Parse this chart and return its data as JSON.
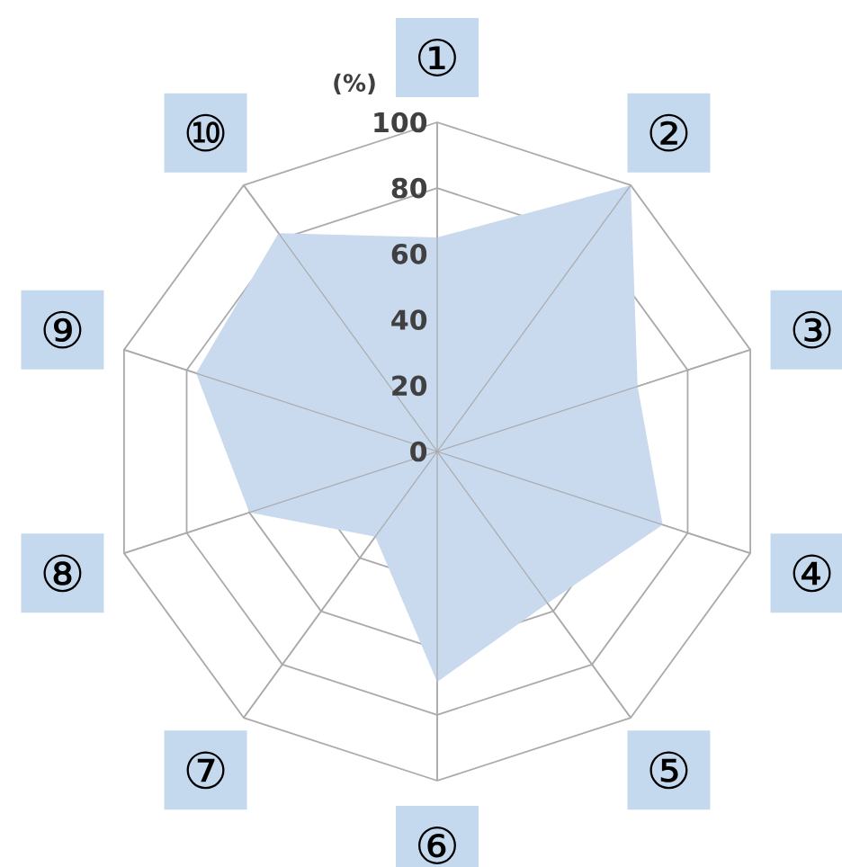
{
  "chart_data": {
    "type": "radar",
    "ylabel": "(%)",
    "categories": [
      "①",
      "②",
      "③",
      "④",
      "⑤",
      "⑥",
      "⑦",
      "⑧",
      "⑨",
      "⑩"
    ],
    "series": [
      {
        "color": "#c9d9ee",
        "values": [
          65,
          100,
          64,
          72,
          57,
          70,
          32,
          60,
          77,
          82
        ]
      }
    ],
    "ylim": [
      0,
      100
    ],
    "yticks": [
      0,
      20,
      40,
      60,
      80,
      100
    ],
    "grid": true
  }
}
